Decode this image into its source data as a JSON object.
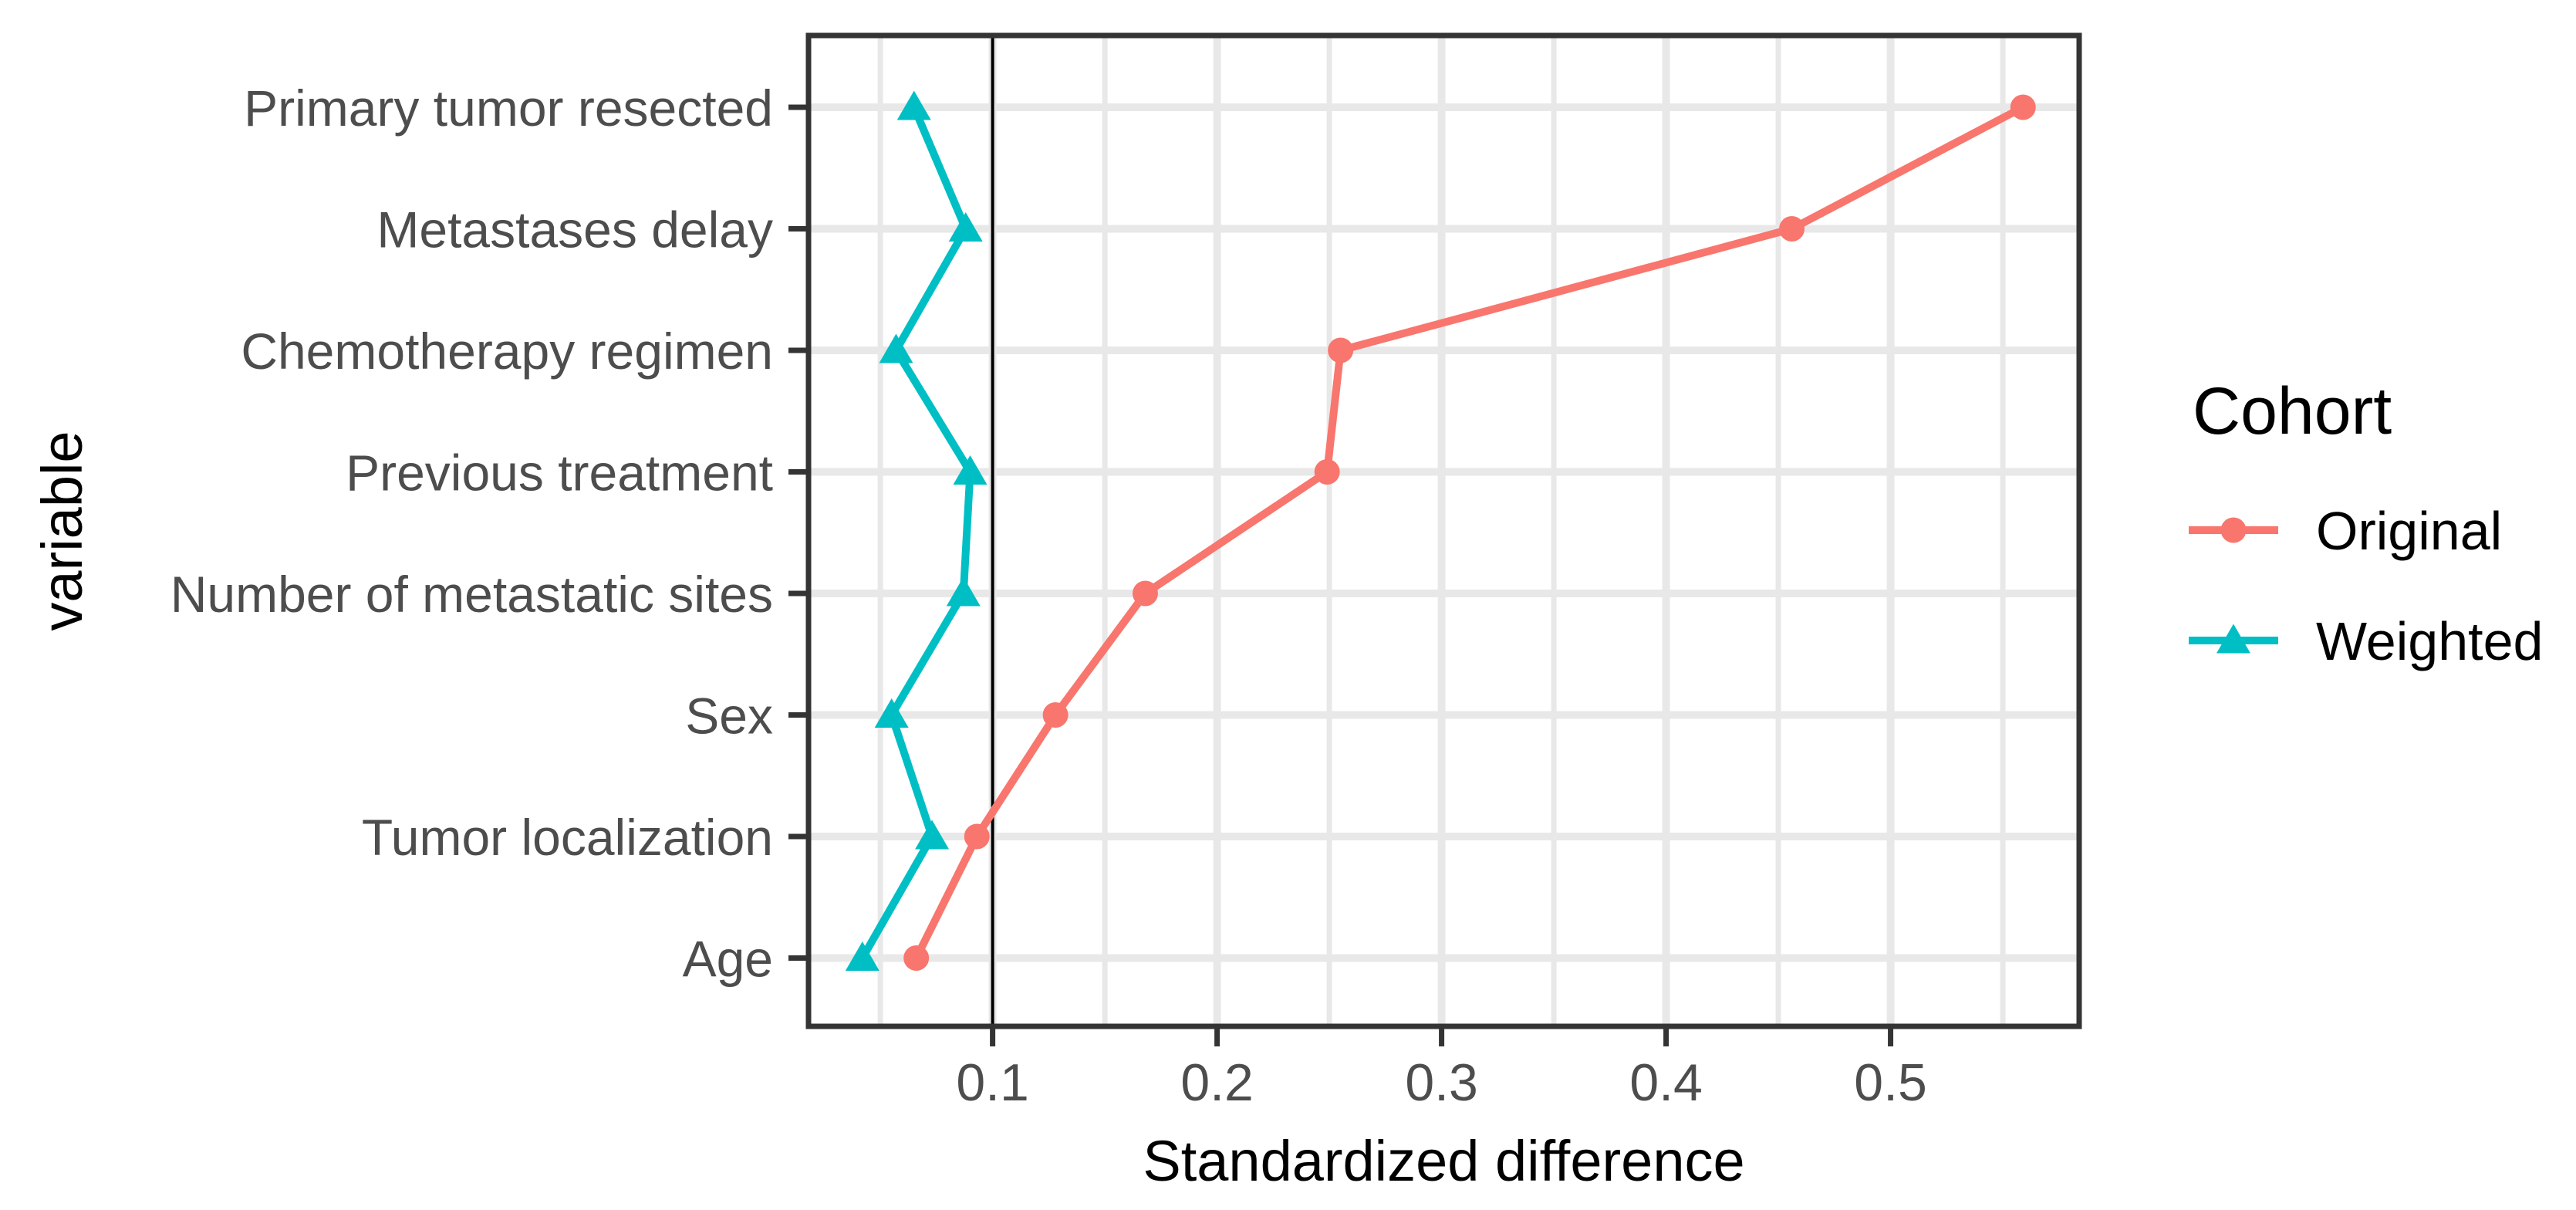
{
  "figure": {
    "background": "#FFFFFF",
    "panel_border_color": "#343434",
    "grid_color": "#E8E8E8",
    "axis_text_color": "#4D4D4D",
    "title_color": "#000000",
    "reference_line_color": "#000000"
  },
  "axis": {
    "x_title": "Standardized difference",
    "y_title": "variable"
  },
  "legend": {
    "title": "Cohort",
    "position": "right",
    "items": [
      {
        "label": "Original",
        "marker": "circle",
        "color": "#F8766D"
      },
      {
        "label": "Weighted",
        "marker": "triangle",
        "color": "#00BFC4"
      }
    ]
  },
  "chart_data": {
    "type": "line",
    "orientation": "values on x, categories on y",
    "title": "",
    "xlabel": "Standardized difference",
    "ylabel": "variable",
    "categories": [
      "Primary tumor resected",
      "Metastases delay",
      "Chemotherapy regimen",
      "Previous treatment",
      "Number of metastatic sites",
      "Sex",
      "Tumor localization",
      "Age"
    ],
    "x_ticks": [
      0.1,
      0.2,
      0.3,
      0.4,
      0.5
    ],
    "x_tick_labels": [
      "0.1",
      "0.2",
      "0.3",
      "0.4",
      "0.5"
    ],
    "x_minor_ticks": [
      0.05,
      0.15,
      0.25,
      0.35,
      0.45,
      0.55
    ],
    "xlim": [
      0.018,
      0.584
    ],
    "reference_line_x": 0.1,
    "grid": "major+minor vertical, major horizontal, no minor horizontal",
    "legend_position": "right",
    "series": [
      {
        "name": "Original",
        "marker": "circle",
        "color": "#F8766D",
        "values": [
          0.559,
          0.456,
          0.255,
          0.249,
          0.168,
          0.128,
          0.093,
          0.066
        ]
      },
      {
        "name": "Weighted",
        "marker": "triangle",
        "color": "#00BFC4",
        "values": [
          0.065,
          0.088,
          0.057,
          0.09,
          0.087,
          0.055,
          0.073,
          0.042
        ]
      }
    ]
  }
}
